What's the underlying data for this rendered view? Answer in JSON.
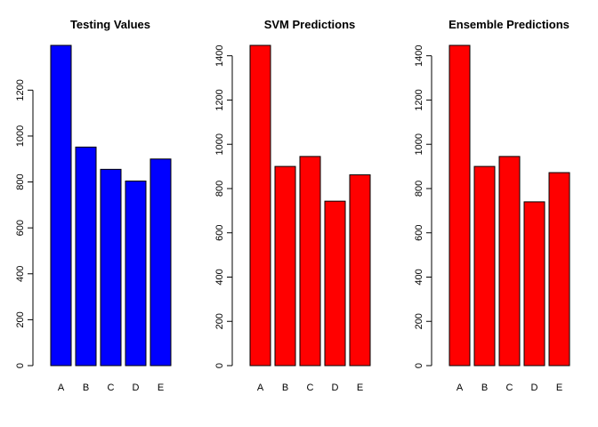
{
  "chart_data": [
    {
      "type": "bar",
      "title": "Testing Values",
      "categories": [
        "A",
        "B",
        "C",
        "D",
        "E"
      ],
      "values": [
        1395,
        952,
        855,
        804,
        900
      ],
      "color": "#0000ff",
      "ylim": [
        0,
        1395
      ],
      "yticks": [
        0,
        200,
        400,
        600,
        800,
        1000,
        1200
      ],
      "xlabel": "",
      "ylabel": "",
      "grid": false
    },
    {
      "type": "bar",
      "title": "SVM Predictions",
      "categories": [
        "A",
        "B",
        "C",
        "D",
        "E"
      ],
      "values": [
        1447,
        900,
        945,
        743,
        862
      ],
      "color": "#ff0000",
      "ylim": [
        0,
        1447
      ],
      "yticks": [
        0,
        200,
        400,
        600,
        800,
        1000,
        1200,
        1400
      ],
      "xlabel": "",
      "ylabel": "",
      "grid": false
    },
    {
      "type": "bar",
      "title": "Ensemble Predictions",
      "categories": [
        "A",
        "B",
        "C",
        "D",
        "E"
      ],
      "values": [
        1447,
        900,
        945,
        740,
        872
      ],
      "color": "#ff0000",
      "ylim": [
        0,
        1447
      ],
      "yticks": [
        0,
        200,
        400,
        600,
        800,
        1000,
        1200,
        1400
      ],
      "xlabel": "",
      "ylabel": "",
      "grid": false
    }
  ]
}
